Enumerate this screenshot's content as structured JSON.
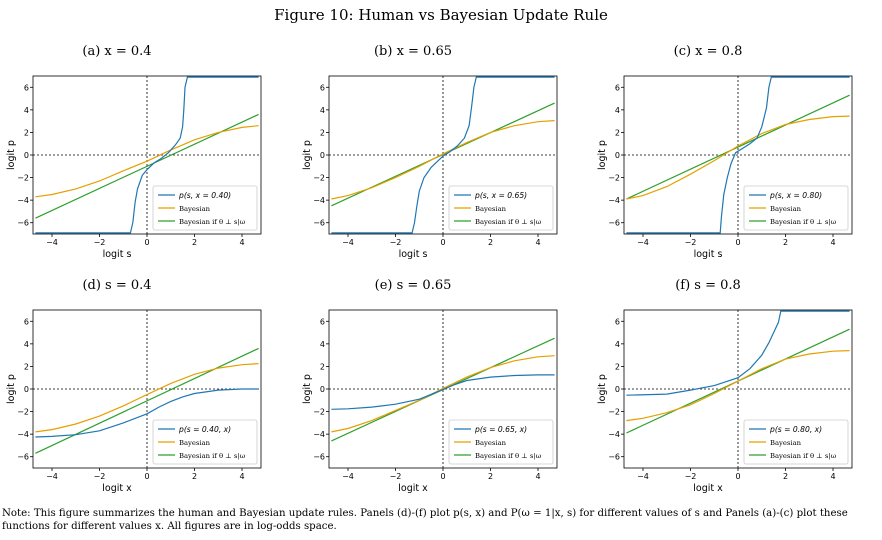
{
  "figure": {
    "title": "Figure 10: Human vs Bayesian Update Rule",
    "note": "Note: This figure summarizes the human and Bayesian update rules. Panels (d)-(f) plot p(s, x) and P(ω = 1|x, s) for different values of s and Panels (a)-(c) plot these functions for different values x. All figures are in log-odds space."
  },
  "colors": {
    "human": "#1f77b4",
    "bayesian": "#e69f00",
    "indep": "#2ca02c"
  },
  "chart_data": [
    {
      "type": "line",
      "panel": "(a) x = 0.4",
      "title": "(a) x = 0.4",
      "xlabel": "logit s",
      "ylabel": "logit p",
      "xlim": [
        -4.8,
        4.8
      ],
      "ylim": [
        -7,
        7
      ],
      "xticks": [
        -4,
        -2,
        0,
        2,
        4
      ],
      "yticks": [
        -6,
        -4,
        -2,
        0,
        2,
        4,
        6
      ],
      "legend_position": "lower-right",
      "series": [
        {
          "name": "p(s, x = 0.40)",
          "key": "human",
          "x": [
            -4.7,
            -0.7,
            -0.6,
            -0.5,
            -0.4,
            -0.2,
            0,
            0.3,
            0.6,
            0.9,
            1.2,
            1.4,
            1.5,
            1.55,
            1.6,
            1.7,
            2.3,
            4.7
          ],
          "y": [
            -6.9,
            -6.9,
            -6.0,
            -4.2,
            -3.0,
            -1.8,
            -1.3,
            -0.7,
            -0.3,
            0.2,
            0.9,
            1.5,
            2.5,
            4.0,
            6.0,
            6.9,
            6.9,
            6.9
          ]
        },
        {
          "name": "Bayesian",
          "key": "bayesian",
          "x": [
            -4.7,
            -4,
            -3,
            -2,
            -1,
            0,
            1,
            2,
            3,
            4,
            4.7
          ],
          "y": [
            -3.7,
            -3.5,
            -3.0,
            -2.3,
            -1.4,
            -0.55,
            0.45,
            1.35,
            2.0,
            2.45,
            2.6
          ]
        },
        {
          "name": "Bayesian if θ ⊥ s|ω",
          "key": "indep",
          "x": [
            -4.7,
            4.7
          ],
          "y": [
            -5.6,
            3.6
          ]
        }
      ]
    },
    {
      "type": "line",
      "panel": "(b) x = 0.65",
      "title": "(b) x = 0.65",
      "xlabel": "logit s",
      "ylabel": "logit p",
      "xlim": [
        -4.8,
        4.8
      ],
      "ylim": [
        -7,
        7
      ],
      "xticks": [
        -4,
        -2,
        0,
        2,
        4
      ],
      "yticks": [
        -6,
        -4,
        -2,
        0,
        2,
        4,
        6
      ],
      "legend_position": "lower-right",
      "series": [
        {
          "name": "p(s, x = 0.65)",
          "key": "human",
          "x": [
            -4.7,
            -1.3,
            -1.2,
            -1.1,
            -1.0,
            -0.8,
            -0.5,
            -0.2,
            0,
            0.3,
            0.6,
            0.9,
            1.1,
            1.2,
            1.3,
            1.4,
            2.5,
            4.7
          ],
          "y": [
            -6.9,
            -6.9,
            -6.0,
            -4.5,
            -3.2,
            -2.0,
            -1.1,
            -0.5,
            -0.1,
            0.3,
            0.8,
            1.5,
            2.6,
            4.2,
            6.0,
            6.9,
            6.9,
            6.9
          ]
        },
        {
          "name": "Bayesian",
          "key": "bayesian",
          "x": [
            -4.7,
            -4,
            -3,
            -2,
            -1,
            0,
            1,
            2,
            3,
            4,
            4.7
          ],
          "y": [
            -3.9,
            -3.6,
            -2.9,
            -2.0,
            -1.0,
            0.1,
            1.1,
            2.0,
            2.6,
            2.95,
            3.05
          ]
        },
        {
          "name": "Bayesian if θ ⊥ s|ω",
          "key": "indep",
          "x": [
            -4.7,
            4.7
          ],
          "y": [
            -4.5,
            4.6
          ]
        }
      ]
    },
    {
      "type": "line",
      "panel": "(c) x = 0.8",
      "title": "(c) x = 0.8",
      "xlabel": "logit s",
      "ylabel": "logit p",
      "xlim": [
        -4.8,
        4.8
      ],
      "ylim": [
        -7,
        7
      ],
      "xticks": [
        -4,
        -2,
        0,
        2,
        4
      ],
      "yticks": [
        -6,
        -4,
        -2,
        0,
        2,
        4,
        6
      ],
      "legend_position": "lower-right",
      "series": [
        {
          "name": "p(s, x = 0.80)",
          "key": "human",
          "x": [
            -4.7,
            -0.75,
            -0.7,
            -0.6,
            -0.45,
            -0.3,
            -0.1,
            0.2,
            0.5,
            0.8,
            1.0,
            1.2,
            1.3,
            1.4,
            1.5,
            2.5,
            4.7
          ],
          "y": [
            -6.9,
            -6.9,
            -5.5,
            -3.5,
            -2.0,
            -0.8,
            0.2,
            0.6,
            1.0,
            1.5,
            2.5,
            4.2,
            6.0,
            6.9,
            6.9,
            6.9,
            6.9
          ]
        },
        {
          "name": "Bayesian",
          "key": "bayesian",
          "x": [
            -4.7,
            -4,
            -3,
            -2,
            -1,
            0,
            1,
            2,
            3,
            4,
            4.7
          ],
          "y": [
            -3.9,
            -3.6,
            -2.8,
            -1.7,
            -0.5,
            0.8,
            1.9,
            2.7,
            3.15,
            3.4,
            3.45
          ]
        },
        {
          "name": "Bayesian if θ ⊥ s|ω",
          "key": "indep",
          "x": [
            -4.7,
            4.7
          ],
          "y": [
            -3.9,
            5.3
          ]
        }
      ]
    },
    {
      "type": "line",
      "panel": "(d) s = 0.4",
      "title": "(d) s = 0.4",
      "xlabel": "logit x",
      "ylabel": "logit p",
      "xlim": [
        -4.8,
        4.8
      ],
      "ylim": [
        -7,
        7
      ],
      "xticks": [
        -4,
        -2,
        0,
        2,
        4
      ],
      "yticks": [
        -6,
        -4,
        -2,
        0,
        2,
        4,
        6
      ],
      "legend_position": "lower-right",
      "series": [
        {
          "name": "p(s = 0.40, x)",
          "key": "human",
          "x": [
            -4.7,
            -4,
            -3,
            -2,
            -1,
            0,
            0.5,
            1,
            1.5,
            2,
            3,
            4,
            4.7
          ],
          "y": [
            -4.25,
            -4.2,
            -4.05,
            -3.7,
            -3.0,
            -2.2,
            -1.6,
            -1.1,
            -0.7,
            -0.4,
            -0.1,
            0.0,
            0.0
          ]
        },
        {
          "name": "Bayesian",
          "key": "bayesian",
          "x": [
            -4.7,
            -4,
            -3,
            -2,
            -1,
            0,
            1,
            2,
            3,
            4,
            4.7
          ],
          "y": [
            -3.8,
            -3.6,
            -3.1,
            -2.4,
            -1.5,
            -0.5,
            0.5,
            1.3,
            1.85,
            2.15,
            2.25
          ]
        },
        {
          "name": "Bayesian if θ ⊥ s|ω",
          "key": "indep",
          "x": [
            -4.7,
            4.7
          ],
          "y": [
            -5.7,
            3.6
          ]
        }
      ]
    },
    {
      "type": "line",
      "panel": "(e) s = 0.65",
      "title": "(e) s = 0.65",
      "xlabel": "logit x",
      "ylabel": "logit p",
      "xlim": [
        -4.8,
        4.8
      ],
      "ylim": [
        -7,
        7
      ],
      "xticks": [
        -4,
        -2,
        0,
        2,
        4
      ],
      "yticks": [
        -6,
        -4,
        -2,
        0,
        2,
        4,
        6
      ],
      "legend_position": "lower-right",
      "series": [
        {
          "name": "p(s = 0.65, x)",
          "key": "human",
          "x": [
            -4.7,
            -4,
            -3,
            -2,
            -1,
            0,
            0.5,
            1,
            2,
            3,
            4,
            4.7
          ],
          "y": [
            -1.8,
            -1.75,
            -1.6,
            -1.35,
            -0.9,
            -0.05,
            0.4,
            0.75,
            1.05,
            1.2,
            1.25,
            1.25
          ]
        },
        {
          "name": "Bayesian",
          "key": "bayesian",
          "x": [
            -4.7,
            -4,
            -3,
            -2,
            -1,
            0,
            1,
            2,
            3,
            4,
            4.7
          ],
          "y": [
            -3.8,
            -3.5,
            -2.8,
            -1.9,
            -1.0,
            0.05,
            1.05,
            1.9,
            2.5,
            2.85,
            2.95
          ]
        },
        {
          "name": "Bayesian if θ ⊥ s|ω",
          "key": "indep",
          "x": [
            -4.7,
            4.7
          ],
          "y": [
            -4.6,
            4.5
          ]
        }
      ]
    },
    {
      "type": "line",
      "panel": "(f) s = 0.8",
      "title": "(f) s = 0.8",
      "xlabel": "logit x",
      "ylabel": "logit p",
      "xlim": [
        -4.8,
        4.8
      ],
      "ylim": [
        -7,
        7
      ],
      "xticks": [
        -4,
        -2,
        0,
        2,
        4
      ],
      "yticks": [
        -6,
        -4,
        -2,
        0,
        2,
        4,
        6
      ],
      "legend_position": "lower-right",
      "series": [
        {
          "name": "p(s = 0.80, x)",
          "key": "human",
          "x": [
            -4.7,
            -3,
            -2,
            -1,
            0,
            0.5,
            1,
            1.3,
            1.5,
            1.7,
            1.8,
            1.9,
            2.5,
            4.7
          ],
          "y": [
            -0.55,
            -0.45,
            -0.1,
            0.3,
            1.0,
            1.8,
            3.0,
            4.1,
            5.0,
            5.9,
            6.9,
            6.9,
            6.9,
            6.9
          ]
        },
        {
          "name": "Bayesian",
          "key": "bayesian",
          "x": [
            -4.7,
            -4,
            -3,
            -2,
            -1,
            0,
            1,
            2,
            3,
            4,
            4.7
          ],
          "y": [
            -2.8,
            -2.6,
            -2.1,
            -1.4,
            -0.4,
            0.7,
            1.8,
            2.65,
            3.1,
            3.35,
            3.4
          ]
        },
        {
          "name": "Bayesian if θ ⊥ s|ω",
          "key": "indep",
          "x": [
            -4.7,
            4.7
          ],
          "y": [
            -3.9,
            5.3
          ]
        }
      ]
    }
  ]
}
